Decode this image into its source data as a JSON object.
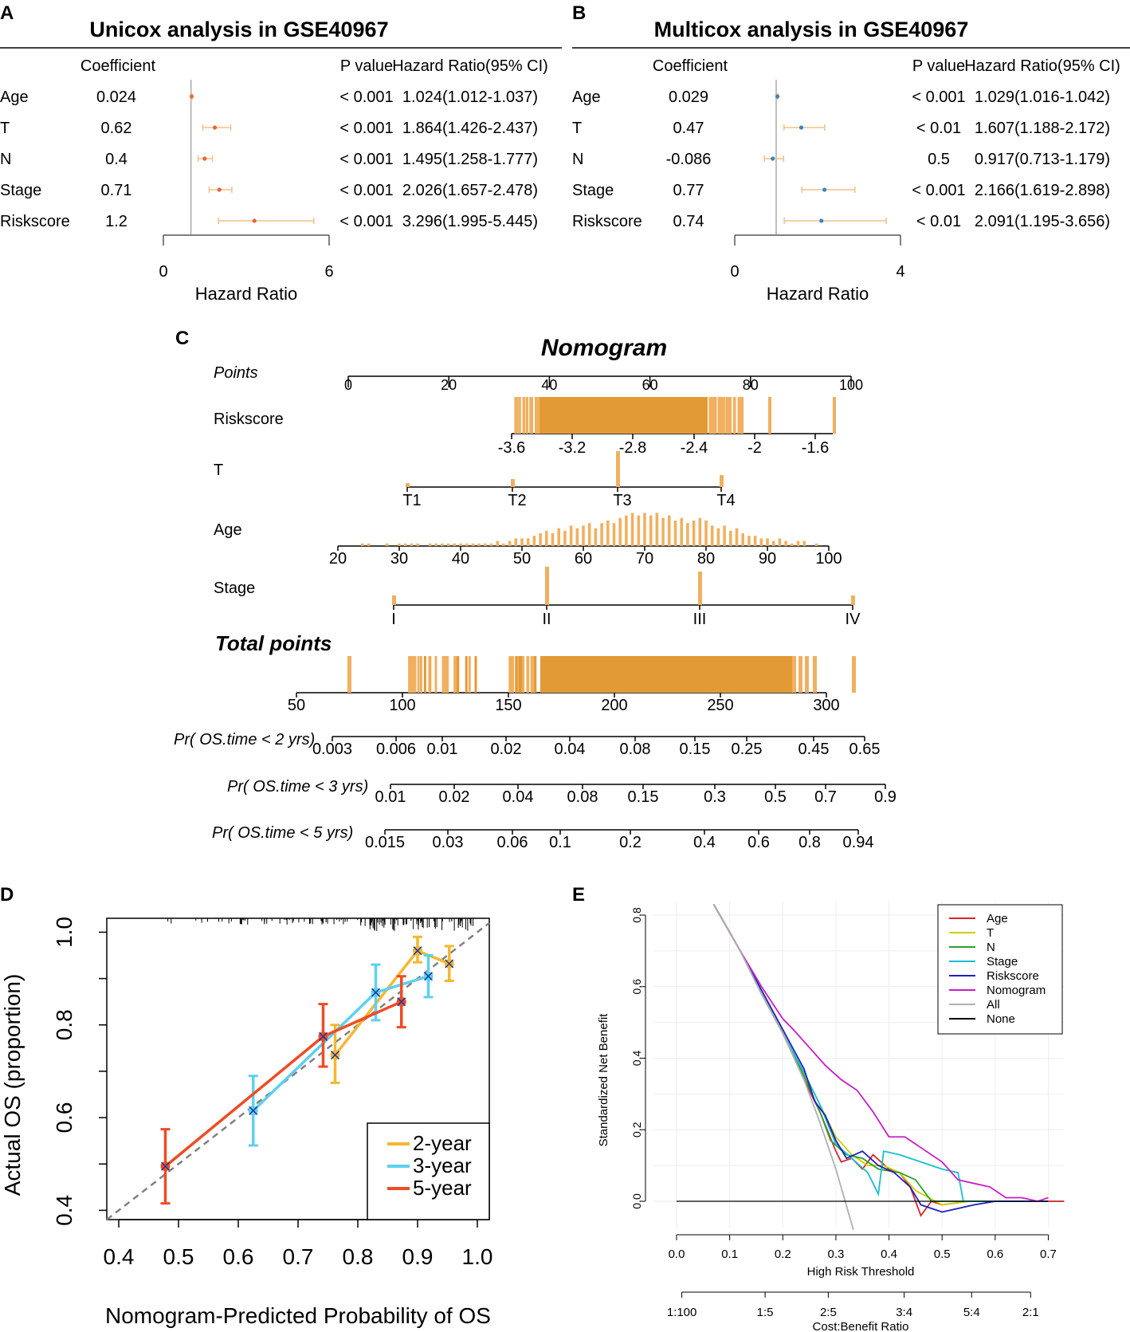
{
  "chart_data": [
    {
      "panel": "A",
      "type": "forest",
      "title": "Unicox analysis in GSE40967",
      "headers": {
        "coef": "Coefficient",
        "p": "P value",
        "hr": "Hazard Ratio(95% CI)"
      },
      "rows": [
        {
          "label": "Age",
          "coef": "0.024",
          "p": "< 0.001",
          "hr_text": "1.024(1.012-1.037)",
          "hr": 1.024,
          "lo": 1.012,
          "hi": 1.037
        },
        {
          "label": "T",
          "coef": "0.62",
          "p": "< 0.001",
          "hr_text": "1.864(1.426-2.437)",
          "hr": 1.864,
          "lo": 1.426,
          "hi": 2.437
        },
        {
          "label": "N",
          "coef": "0.4",
          "p": "< 0.001",
          "hr_text": "1.495(1.258-1.777)",
          "hr": 1.495,
          "lo": 1.258,
          "hi": 1.777
        },
        {
          "label": "Stage",
          "coef": "0.71",
          "p": "< 0.001",
          "hr_text": "2.026(1.657-2.478)",
          "hr": 2.026,
          "lo": 1.657,
          "hi": 2.478
        },
        {
          "label": "Riskscore",
          "coef": "1.2",
          "p": "< 0.001",
          "hr_text": "3.296(1.995-5.445)",
          "hr": 3.296,
          "lo": 1.995,
          "hi": 5.445
        }
      ],
      "xlim": [
        0,
        6
      ],
      "ticks": [
        "0",
        "6"
      ],
      "xlabel": "Hazard Ratio",
      "point_color": "#e8673a",
      "ci_color": "#f5c085"
    },
    {
      "panel": "B",
      "type": "forest",
      "title": "Multicox analysis in GSE40967",
      "headers": {
        "coef": "Coefficient",
        "p": "P value",
        "hr": "Hazard Ratio(95% CI)"
      },
      "rows": [
        {
          "label": "Age",
          "coef": "0.029",
          "p": "< 0.001",
          "hr_text": "1.029(1.016-1.042)",
          "hr": 1.029,
          "lo": 1.016,
          "hi": 1.042
        },
        {
          "label": "T",
          "coef": "0.47",
          "p": "< 0.01",
          "hr_text": "1.607(1.188-2.172)",
          "hr": 1.607,
          "lo": 1.188,
          "hi": 2.172
        },
        {
          "label": "N",
          "coef": "-0.086",
          "p": "0.5",
          "hr_text": "0.917(0.713-1.179)",
          "hr": 0.917,
          "lo": 0.713,
          "hi": 1.179
        },
        {
          "label": "Stage",
          "coef": "0.77",
          "p": "< 0.001",
          "hr_text": "2.166(1.619-2.898)",
          "hr": 2.166,
          "lo": 1.619,
          "hi": 2.898
        },
        {
          "label": "Riskscore",
          "coef": "0.74",
          "p": "< 0.01",
          "hr_text": "2.091(1.195-3.656)",
          "hr": 2.091,
          "lo": 1.195,
          "hi": 3.656
        }
      ],
      "xlim": [
        0,
        4
      ],
      "ticks": [
        "0",
        "4"
      ],
      "xlabel": "Hazard Ratio",
      "point_color": "#3a86c4",
      "ci_color": "#f5c085"
    },
    {
      "panel": "C",
      "type": "nomogram",
      "title": "Nomogram",
      "points_label": "Points",
      "points_ticks": [
        "0",
        "20",
        "40",
        "60",
        "80",
        "100"
      ],
      "riskscore": {
        "label": "Riskscore",
        "ticks": [
          "-3.6",
          "-3.2",
          "-2.8",
          "-2.4",
          "-2",
          "-1.6"
        ]
      },
      "T": {
        "label": "T",
        "levels": [
          "T1",
          "T2",
          "T3",
          "T4"
        ],
        "counts": [
          2,
          4,
          18,
          6
        ]
      },
      "age": {
        "label": "Age",
        "ticks": [
          "20",
          "30",
          "40",
          "50",
          "60",
          "70",
          "80",
          "90",
          "100"
        ],
        "bins": [
          {
            "age": 24,
            "n": 1
          },
          {
            "age": 25,
            "n": 1
          },
          {
            "age": 28,
            "n": 1
          },
          {
            "age": 30,
            "n": 1
          },
          {
            "age": 31,
            "n": 1
          },
          {
            "age": 32,
            "n": 1
          },
          {
            "age": 33,
            "n": 1
          },
          {
            "age": 35,
            "n": 1
          },
          {
            "age": 36,
            "n": 1
          },
          {
            "age": 37,
            "n": 1
          },
          {
            "age": 38,
            "n": 1
          },
          {
            "age": 39,
            "n": 1
          },
          {
            "age": 40,
            "n": 1
          },
          {
            "age": 41,
            "n": 1
          },
          {
            "age": 42,
            "n": 1
          },
          {
            "age": 43,
            "n": 1
          },
          {
            "age": 44,
            "n": 1
          },
          {
            "age": 45,
            "n": 1
          },
          {
            "age": 46,
            "n": 2
          },
          {
            "age": 47,
            "n": 1
          },
          {
            "age": 48,
            "n": 2
          },
          {
            "age": 49,
            "n": 3
          },
          {
            "age": 50,
            "n": 3
          },
          {
            "age": 51,
            "n": 3
          },
          {
            "age": 52,
            "n": 4
          },
          {
            "age": 53,
            "n": 5
          },
          {
            "age": 54,
            "n": 6
          },
          {
            "age": 55,
            "n": 5
          },
          {
            "age": 56,
            "n": 7
          },
          {
            "age": 57,
            "n": 6
          },
          {
            "age": 58,
            "n": 8
          },
          {
            "age": 59,
            "n": 7
          },
          {
            "age": 60,
            "n": 8
          },
          {
            "age": 61,
            "n": 9
          },
          {
            "age": 62,
            "n": 7
          },
          {
            "age": 63,
            "n": 9
          },
          {
            "age": 64,
            "n": 10
          },
          {
            "age": 65,
            "n": 9
          },
          {
            "age": 66,
            "n": 11
          },
          {
            "age": 67,
            "n": 12
          },
          {
            "age": 68,
            "n": 13
          },
          {
            "age": 69,
            "n": 12
          },
          {
            "age": 70,
            "n": 13
          },
          {
            "age": 71,
            "n": 12
          },
          {
            "age": 72,
            "n": 13
          },
          {
            "age": 73,
            "n": 11
          },
          {
            "age": 74,
            "n": 12
          },
          {
            "age": 75,
            "n": 10
          },
          {
            "age": 76,
            "n": 11
          },
          {
            "age": 77,
            "n": 9
          },
          {
            "age": 78,
            "n": 10
          },
          {
            "age": 79,
            "n": 11
          },
          {
            "age": 80,
            "n": 10
          },
          {
            "age": 81,
            "n": 8
          },
          {
            "age": 82,
            "n": 7
          },
          {
            "age": 83,
            "n": 8
          },
          {
            "age": 84,
            "n": 6
          },
          {
            "age": 85,
            "n": 7
          },
          {
            "age": 86,
            "n": 5
          },
          {
            "age": 87,
            "n": 4
          },
          {
            "age": 88,
            "n": 4
          },
          {
            "age": 89,
            "n": 3
          },
          {
            "age": 90,
            "n": 3
          },
          {
            "age": 91,
            "n": 2
          },
          {
            "age": 92,
            "n": 3
          },
          {
            "age": 93,
            "n": 2
          },
          {
            "age": 94,
            "n": 1
          },
          {
            "age": 95,
            "n": 2
          },
          {
            "age": 96,
            "n": 2
          },
          {
            "age": 98,
            "n": 1
          }
        ]
      },
      "stage": {
        "label": "Stage",
        "levels": [
          "I",
          "II",
          "III",
          "IV"
        ],
        "counts": [
          2,
          8,
          7,
          2
        ]
      },
      "total_points": {
        "label": "Total points",
        "ticks": [
          "50",
          "100",
          "150",
          "200",
          "250",
          "300"
        ]
      },
      "pr2": {
        "label": "Pr( OS.time < 2 yrs)",
        "ticks": [
          "0.003",
          "0.006",
          "0.01",
          "0.02",
          "0.04",
          "0.08",
          "0.15",
          "0.25",
          "0.45",
          "0.65"
        ]
      },
      "pr3": {
        "label": "Pr( OS.time < 3 yrs)",
        "ticks": [
          "0.01",
          "0.02",
          "0.04",
          "0.08",
          "0.15",
          "0.3",
          "0.5",
          "0.7",
          "0.9"
        ]
      },
      "pr5": {
        "label": "Pr( OS.time < 5 yrs)",
        "ticks": [
          "0.015",
          "0.03",
          "0.06",
          "0.1",
          "0.2",
          "0.4",
          "0.6",
          "0.8",
          "0.94"
        ]
      },
      "bar_color": "#f0b060",
      "bar_dark_color": "#e29a35"
    },
    {
      "panel": "D",
      "type": "calibration",
      "xlabel": "Nomogram-Predicted Probability of OS",
      "ylabel": "Actual OS (proportion)",
      "xlim": [
        0.38,
        1.02
      ],
      "ylim": [
        0.38,
        1.03
      ],
      "x_ticks": [
        "0.4",
        "0.5",
        "0.6",
        "0.7",
        "0.8",
        "0.9",
        "1.0"
      ],
      "y_ticks": [
        "0.4",
        "0.6",
        "0.8",
        "1.0"
      ],
      "series": [
        {
          "name": "2-year",
          "color": "#f5b731",
          "points": [
            {
              "x": 0.762,
              "y": 0.735,
              "lo": 0.675,
              "hi": 0.8
            },
            {
              "x": 0.9,
              "y": 0.96,
              "lo": 0.935,
              "hi": 0.99
            },
            {
              "x": 0.953,
              "y": 0.932,
              "lo": 0.895,
              "hi": 0.97
            }
          ]
        },
        {
          "name": "3-year",
          "color": "#5dd0f0",
          "points": [
            {
              "x": 0.625,
              "y": 0.615,
              "lo": 0.54,
              "hi": 0.69
            },
            {
              "x": 0.83,
              "y": 0.87,
              "lo": 0.81,
              "hi": 0.93
            },
            {
              "x": 0.918,
              "y": 0.905,
              "lo": 0.86,
              "hi": 0.95
            }
          ]
        },
        {
          "name": "5-year",
          "color": "#f04b23",
          "points": [
            {
              "x": 0.478,
              "y": 0.495,
              "lo": 0.415,
              "hi": 0.575
            },
            {
              "x": 0.742,
              "y": 0.775,
              "lo": 0.71,
              "hi": 0.845
            },
            {
              "x": 0.873,
              "y": 0.85,
              "lo": 0.795,
              "hi": 0.905
            }
          ]
        }
      ]
    },
    {
      "panel": "E",
      "type": "line",
      "xlabel": "High Risk Threshold",
      "ylabel": "Standardized Net Benefit",
      "xlim": [
        0,
        0.7
      ],
      "ylim": [
        -0.08,
        0.83
      ],
      "x_ticks": [
        "0.0",
        "0.1",
        "0.2",
        "0.3",
        "0.4",
        "0.5",
        "0.6",
        "0.7"
      ],
      "y_ticks": [
        "0.0",
        "0.2",
        "0.4",
        "0.6",
        "0.8"
      ],
      "cost_label": "Cost:Benefit Ratio",
      "cost_ticks": [
        "1:100",
        "1:5",
        "2:5",
        "3:4",
        "5:4",
        "2:1"
      ],
      "series": [
        {
          "name": "Age",
          "color": "#d62728",
          "x": [
            0.07,
            0.12,
            0.16,
            0.2,
            0.24,
            0.27,
            0.3,
            0.31,
            0.33,
            0.35,
            0.37,
            0.4,
            0.42,
            0.44,
            0.46,
            0.48,
            0.5,
            0.55,
            0.62,
            0.7
          ],
          "y": [
            0.83,
            0.7,
            0.58,
            0.47,
            0.34,
            0.25,
            0.14,
            0.11,
            0.12,
            0.09,
            0.13,
            0.09,
            0.08,
            0.04,
            -0.04,
            0.0,
            -0.01,
            0.0,
            0.0,
            0.0
          ]
        },
        {
          "name": "T",
          "color": "#d4cc00",
          "x": [
            0.07,
            0.12,
            0.16,
            0.2,
            0.24,
            0.27,
            0.3,
            0.33,
            0.36,
            0.39,
            0.42,
            0.45,
            0.5,
            0.55,
            0.62,
            0.7
          ],
          "y": [
            0.83,
            0.7,
            0.58,
            0.47,
            0.36,
            0.27,
            0.18,
            0.13,
            0.1,
            0.1,
            0.08,
            0.03,
            -0.01,
            0.0,
            0.0,
            0.0
          ]
        },
        {
          "name": "N",
          "color": "#2ca02c",
          "x": [
            0.07,
            0.12,
            0.16,
            0.2,
            0.24,
            0.27,
            0.29,
            0.32,
            0.35,
            0.38,
            0.42,
            0.45,
            0.48,
            0.52,
            0.6,
            0.7
          ],
          "y": [
            0.83,
            0.7,
            0.58,
            0.47,
            0.35,
            0.25,
            0.17,
            0.13,
            0.12,
            0.09,
            0.08,
            0.06,
            0.0,
            0.0,
            0.0,
            0.0
          ]
        },
        {
          "name": "Stage",
          "color": "#17becf",
          "x": [
            0.07,
            0.12,
            0.16,
            0.2,
            0.24,
            0.27,
            0.3,
            0.33,
            0.36,
            0.38,
            0.39,
            0.42,
            0.46,
            0.5,
            0.53,
            0.54,
            0.6,
            0.7
          ],
          "y": [
            0.83,
            0.7,
            0.58,
            0.47,
            0.36,
            0.27,
            0.16,
            0.12,
            0.08,
            0.02,
            0.14,
            0.13,
            0.11,
            0.09,
            0.08,
            0.0,
            0.0,
            0.0
          ]
        },
        {
          "name": "Riskscore",
          "color": "#1f1fbf",
          "x": [
            0.07,
            0.12,
            0.16,
            0.2,
            0.24,
            0.26,
            0.28,
            0.3,
            0.32,
            0.35,
            0.38,
            0.41,
            0.44,
            0.46,
            0.48,
            0.5,
            0.53,
            0.56,
            0.6,
            0.65,
            0.7
          ],
          "y": [
            0.83,
            0.7,
            0.59,
            0.48,
            0.37,
            0.28,
            0.24,
            0.17,
            0.12,
            0.14,
            0.1,
            0.08,
            0.04,
            -0.01,
            -0.02,
            -0.03,
            -0.02,
            -0.01,
            0.0,
            0.0,
            0.0
          ]
        },
        {
          "name": "Nomogram",
          "color": "#c71ec7",
          "x": [
            0.07,
            0.12,
            0.16,
            0.2,
            0.22,
            0.25,
            0.28,
            0.31,
            0.34,
            0.37,
            0.4,
            0.43,
            0.46,
            0.5,
            0.53,
            0.56,
            0.59,
            0.62,
            0.65,
            0.68,
            0.7
          ],
          "y": [
            0.83,
            0.7,
            0.6,
            0.51,
            0.48,
            0.43,
            0.38,
            0.34,
            0.31,
            0.25,
            0.18,
            0.18,
            0.15,
            0.11,
            0.06,
            0.05,
            0.04,
            0.01,
            0.01,
            0.0,
            0.01
          ]
        },
        {
          "name": "All",
          "color": "#b0b0b0",
          "x": [
            0.07,
            0.12,
            0.16,
            0.2,
            0.24,
            0.27,
            0.3,
            0.333
          ],
          "y": [
            0.83,
            0.7,
            0.58,
            0.47,
            0.34,
            0.22,
            0.09,
            -0.08
          ]
        },
        {
          "name": "None",
          "color": "#000000",
          "x": [
            0.0,
            0.73
          ],
          "y": [
            0.0,
            0.0
          ]
        }
      ]
    }
  ],
  "labels": {
    "panel_a": "A",
    "panel_b": "B",
    "panel_c": "C",
    "panel_d": "D",
    "panel_e": "E"
  }
}
